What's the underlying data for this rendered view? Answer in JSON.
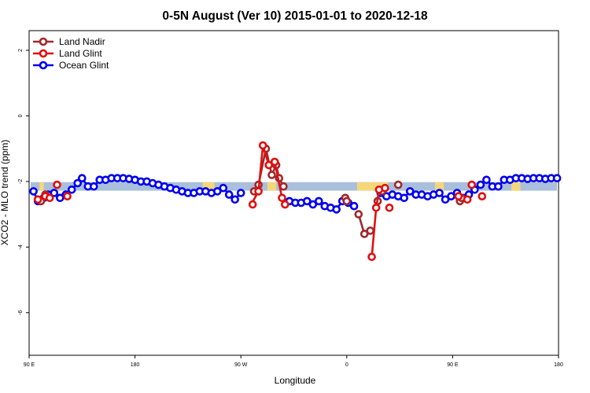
{
  "chart_data": {
    "type": "line",
    "title": "0-5N August (Ver 10)   2015-01-01 to 2020-12-18",
    "xlabel": "Longitude",
    "ylabel": "XCO2 - MLO trend (ppm)",
    "xlim": [
      90,
      450
    ],
    "ylim": [
      -7.3,
      2.6
    ],
    "x_ticks": [
      {
        "value": 90,
        "label": "90 E"
      },
      {
        "value": 162,
        "label": "180"
      },
      {
        "value": 234,
        "label": "90 W"
      },
      {
        "value": 306,
        "label": "0"
      },
      {
        "value": 378,
        "label": "90 E"
      },
      {
        "value": 450,
        "label": "180"
      }
    ],
    "y_ticks": [
      {
        "value": 2,
        "label": "2"
      },
      {
        "value": 0,
        "label": "0"
      },
      {
        "value": -2,
        "label": "-2"
      },
      {
        "value": -4,
        "label": "-4"
      },
      {
        "value": -6,
        "label": "-6"
      }
    ],
    "legend_position": "top-left",
    "band": {
      "y_center": -2.15,
      "half_width": 0.13,
      "color": "#a9bfdc",
      "highlight_color": "#f5d77a",
      "highlights": [
        [
          97,
          100
        ],
        [
          208,
          216
        ],
        [
          252,
          258
        ],
        [
          313,
          334
        ],
        [
          366,
          372
        ],
        [
          418,
          424
        ]
      ]
    },
    "series": [
      {
        "name": "Land Nadir",
        "color": "#a0282c",
        "points": [
          [
            98,
            -2.6
          ],
          [
            101,
            -2.4
          ],
          [
            243,
            -2.3
          ],
          [
            246,
            -2.1
          ],
          [
            251,
            -1.0
          ],
          [
            255,
            -1.8
          ],
          [
            258,
            -1.5
          ],
          [
            260,
            -1.9
          ],
          [
            263,
            -2.15
          ],
          [
            305,
            -2.5
          ],
          [
            306,
            -2.6
          ],
          [
            314,
            -3.0
          ],
          [
            318,
            -3.6
          ],
          [
            322,
            -3.5
          ],
          [
            327,
            -2.6
          ],
          [
            330,
            -2.3
          ],
          [
            341,
            -2.1
          ],
          [
            383,
            -2.6
          ],
          [
            384,
            -2.5
          ]
        ],
        "segments": [
          [
            [
              98,
              -2.6
            ],
            [
              101,
              -2.4
            ]
          ],
          [
            [
              243,
              -2.3
            ],
            [
              246,
              -2.1
            ],
            [
              251,
              -1.0
            ],
            [
              255,
              -1.8
            ],
            [
              258,
              -1.5
            ],
            [
              260,
              -1.9
            ],
            [
              263,
              -2.15
            ]
          ],
          [
            [
              314,
              -3.0
            ],
            [
              318,
              -3.6
            ],
            [
              322,
              -3.5
            ]
          ]
        ]
      },
      {
        "name": "Land Glint",
        "color": "#e01010",
        "points": [
          [
            96,
            -2.55
          ],
          [
            101,
            -2.45
          ],
          [
            104,
            -2.5
          ],
          [
            109,
            -2.1
          ],
          [
            116,
            -2.45
          ],
          [
            242,
            -2.7
          ],
          [
            246,
            -2.3
          ],
          [
            249,
            -0.9
          ],
          [
            253,
            -1.5
          ],
          [
            257,
            -1.4
          ],
          [
            262,
            -2.5
          ],
          [
            264,
            -2.7
          ],
          [
            323,
            -4.3
          ],
          [
            326,
            -2.8
          ],
          [
            328,
            -2.25
          ],
          [
            332,
            -2.2
          ],
          [
            335,
            -2.8
          ],
          [
            382,
            -2.45
          ],
          [
            388,
            -2.55
          ],
          [
            391,
            -2.1
          ],
          [
            398,
            -2.45
          ]
        ],
        "segments": [
          [
            [
              241,
              -2.7
            ],
            [
              246,
              -2.3
            ],
            [
              249,
              -0.9
            ],
            [
              253,
              -1.5
            ],
            [
              257,
              -1.4
            ],
            [
              262,
              -2.5
            ],
            [
              264,
              -2.7
            ]
          ],
          [
            [
              323,
              -4.3
            ],
            [
              326,
              -2.8
            ],
            [
              328,
              -2.25
            ],
            [
              332,
              -2.2
            ]
          ]
        ]
      },
      {
        "name": "Ocean Glint",
        "color": "#0000ee",
        "points": [
          [
            93,
            -2.3
          ],
          [
            96,
            -2.6
          ],
          [
            100,
            -2.5
          ],
          [
            103,
            -2.4
          ],
          [
            107,
            -2.35
          ],
          [
            111,
            -2.5
          ],
          [
            115,
            -2.4
          ],
          [
            119,
            -2.25
          ],
          [
            123,
            -2.05
          ],
          [
            126,
            -1.9
          ],
          [
            130,
            -2.15
          ],
          [
            134,
            -2.15
          ],
          [
            138,
            -1.95
          ],
          [
            142,
            -1.95
          ],
          [
            146,
            -1.9
          ],
          [
            150,
            -1.9
          ],
          [
            154,
            -1.9
          ],
          [
            158,
            -1.92
          ],
          [
            162,
            -1.95
          ],
          [
            166,
            -2.0
          ],
          [
            170,
            -2.0
          ],
          [
            174,
            -2.05
          ],
          [
            178,
            -2.1
          ],
          [
            182,
            -2.15
          ],
          [
            186,
            -2.2
          ],
          [
            190,
            -2.25
          ],
          [
            194,
            -2.3
          ],
          [
            198,
            -2.35
          ],
          [
            202,
            -2.35
          ],
          [
            206,
            -2.3
          ],
          [
            210,
            -2.3
          ],
          [
            214,
            -2.35
          ],
          [
            218,
            -2.3
          ],
          [
            222,
            -2.2
          ],
          [
            226,
            -2.4
          ],
          [
            230,
            -2.55
          ],
          [
            234,
            -2.35
          ],
          [
            267,
            -2.6
          ],
          [
            271,
            -2.65
          ],
          [
            275,
            -2.65
          ],
          [
            279,
            -2.6
          ],
          [
            283,
            -2.7
          ],
          [
            287,
            -2.6
          ],
          [
            291,
            -2.75
          ],
          [
            295,
            -2.8
          ],
          [
            299,
            -2.85
          ],
          [
            303,
            -2.6
          ],
          [
            307,
            -2.65
          ],
          [
            311,
            -2.75
          ],
          [
            329,
            -2.35
          ],
          [
            333,
            -2.45
          ],
          [
            337,
            -2.4
          ],
          [
            341,
            -2.45
          ],
          [
            345,
            -2.5
          ],
          [
            349,
            -2.3
          ],
          [
            353,
            -2.4
          ],
          [
            357,
            -2.4
          ],
          [
            361,
            -2.45
          ],
          [
            365,
            -2.4
          ],
          [
            369,
            -2.35
          ],
          [
            373,
            -2.55
          ],
          [
            377,
            -2.45
          ],
          [
            381,
            -2.35
          ],
          [
            385,
            -2.5
          ],
          [
            389,
            -2.4
          ],
          [
            393,
            -2.25
          ],
          [
            397,
            -2.1
          ],
          [
            401,
            -1.95
          ],
          [
            405,
            -2.15
          ],
          [
            409,
            -2.15
          ],
          [
            413,
            -1.95
          ],
          [
            417,
            -1.95
          ],
          [
            421,
            -1.9
          ],
          [
            425,
            -1.9
          ],
          [
            429,
            -1.92
          ],
          [
            433,
            -1.9
          ],
          [
            437,
            -1.9
          ],
          [
            441,
            -1.92
          ],
          [
            445,
            -1.9
          ],
          [
            449,
            -1.9
          ]
        ]
      }
    ]
  }
}
